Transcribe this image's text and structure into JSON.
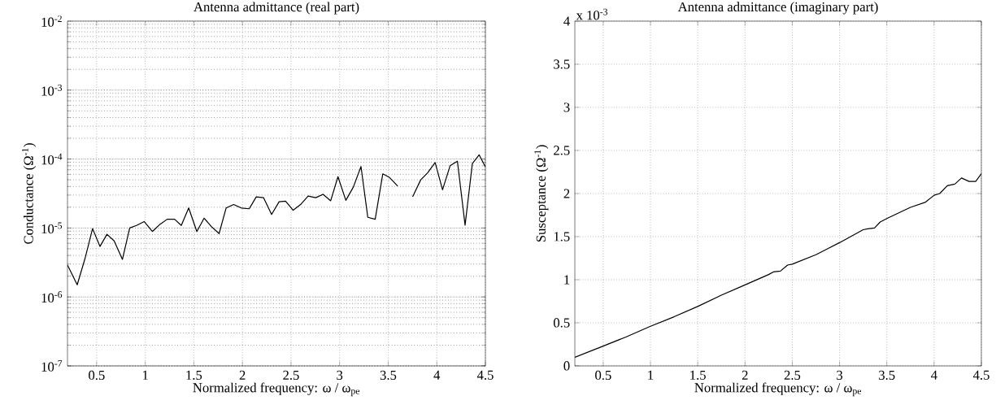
{
  "chart_data": [
    {
      "type": "line",
      "title": "Antenna admittance (real part)",
      "xlabel": "Normalized frequency: ω / ω$_{pe}$",
      "ylabel": "Conductance (Ω$^{-1}$)",
      "log": "y",
      "grid": true,
      "xlim": [
        0.2,
        4.5
      ],
      "xticks": [
        0.5,
        1,
        1.5,
        2,
        2.5,
        3,
        3.5,
        4,
        4.5
      ],
      "ylim": [
        1e-07,
        0.01
      ],
      "yticks": [
        {
          "value": 1e-07,
          "label": "10$^{-7}$"
        },
        {
          "value": 1e-06,
          "label": "10$^{-6}$"
        },
        {
          "value": 1e-05,
          "label": "10$^{-5}$"
        },
        {
          "value": 0.0001,
          "label": "10$^{-4}$"
        },
        {
          "value": 0.001,
          "label": "10$^{-3}$"
        },
        {
          "value": 0.01,
          "label": "10$^{-2}$"
        }
      ],
      "series": [
        {
          "color": "#000000",
          "x": [
            0.2,
            0.3,
            0.38,
            0.458,
            0.534,
            0.606,
            0.68,
            0.765,
            0.84,
            0.91,
            0.989,
            1.073,
            1.151,
            1.226,
            1.302,
            1.371,
            1.447,
            1.531,
            1.606,
            1.68,
            1.76,
            1.832,
            1.91,
            1.989,
            2.07,
            2.142,
            2.218,
            2.3,
            2.377,
            2.444,
            2.522,
            2.598,
            2.676,
            2.754,
            2.83,
            2.908,
            2.983,
            3.064,
            3.142,
            3.22,
            3.29,
            3.366,
            3.444,
            3.514,
            3.598,
            3.675,
            3.751,
            3.835,
            3.905,
            3.983,
            4.059,
            4.137,
            4.212,
            4.291,
            4.366,
            4.436,
            4.5
          ],
          "values": [
            2.9e-06,
            1.5e-06,
            3.6e-06,
            9.8e-06,
            5.4e-06,
            8.1e-06,
            6.5e-06,
            3.5e-06,
            1e-05,
            1.09e-05,
            1.24e-05,
            8.9e-06,
            1.13e-05,
            1.34e-05,
            1.34e-05,
            1.09e-05,
            1.95e-05,
            8.9e-06,
            1.39e-05,
            1.05e-05,
            8.3e-06,
            1.95e-05,
            2.19e-05,
            1.95e-05,
            1.9e-05,
            2.83e-05,
            2.75e-05,
            1.57e-05,
            2.4e-05,
            2.45e-05,
            1.81e-05,
            2.19e-05,
            2.91e-05,
            2.75e-05,
            3.08e-05,
            2.48e-05,
            5.55e-05,
            2.52e-05,
            3.94e-05,
            7.8e-05,
            1.43e-05,
            1.34e-05,
            6.1e-05,
            5.4e-05,
            4.06e-05,
            null,
            2.83e-05,
            5e-05,
            6.3e-05,
            8.9e-05,
            3.59e-05,
            8e-05,
            9.3e-05,
            1.1e-05,
            8.6e-05,
            0.000115,
            7.7e-05
          ]
        }
      ]
    },
    {
      "type": "line",
      "title": "Antenna admittance (imaginary part)",
      "xlabel": "Normalized frequency: ω / ω$_{pe}$",
      "ylabel": "Susceptance (Ω$^{-1}$)",
      "grid": true,
      "annotations": [
        "x 10$^{-3}$"
      ],
      "xlim": [
        0.2,
        4.5
      ],
      "xticks": [
        0.5,
        1,
        1.5,
        2,
        2.5,
        3,
        3.5,
        4,
        4.5
      ],
      "ylim": [
        0,
        4
      ],
      "yticks": [
        0,
        0.5,
        1,
        1.5,
        2,
        2.5,
        3,
        3.5,
        4
      ],
      "series": [
        {
          "color": "#000000",
          "x": [
            0.2,
            0.5,
            0.75,
            1.0,
            1.25,
            1.5,
            1.75,
            2.0,
            2.25,
            2.3,
            2.375,
            2.45,
            2.5,
            2.75,
            3.0,
            3.25,
            3.3,
            3.37,
            3.43,
            3.5,
            3.75,
            3.91,
            4.0,
            4.06,
            4.14,
            4.22,
            4.29,
            4.37,
            4.44,
            4.5
          ],
          "values": [
            0.1,
            0.23,
            0.34,
            0.46,
            0.57,
            0.69,
            0.82,
            0.94,
            1.06,
            1.09,
            1.1,
            1.17,
            1.18,
            1.29,
            1.43,
            1.58,
            1.59,
            1.6,
            1.67,
            1.71,
            1.84,
            1.9,
            1.98,
            2.0,
            2.09,
            2.11,
            2.18,
            2.14,
            2.14,
            2.23
          ]
        }
      ]
    }
  ]
}
